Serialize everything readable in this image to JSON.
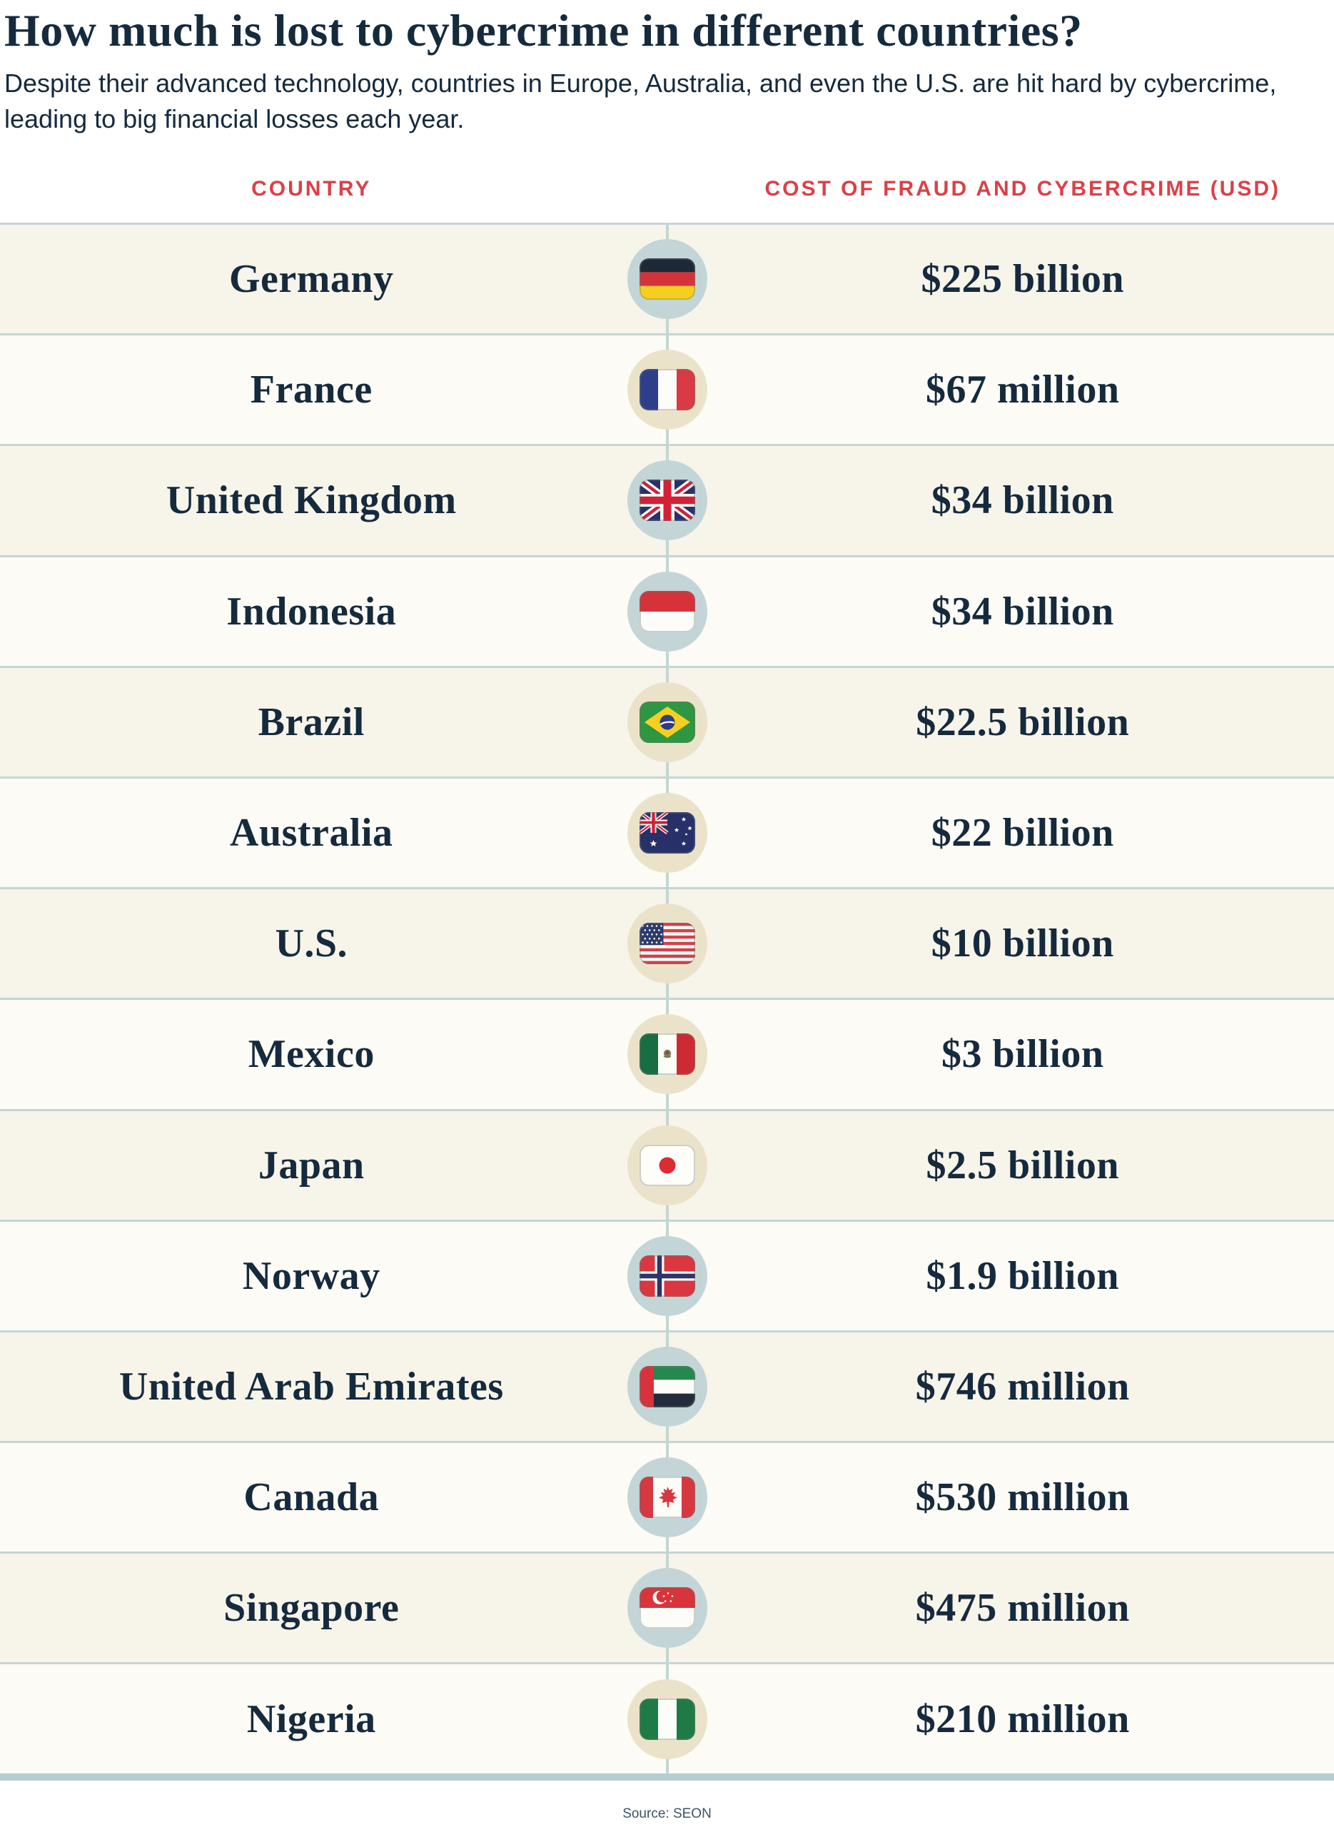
{
  "header": {
    "title": "How much is lost to cybercrime in different countries?",
    "subtitle": "Despite their advanced technology, countries in Europe, Australia, and even the U.S. are hit hard by cybercrime, leading to big financial losses each year."
  },
  "columns": {
    "country_label": "COUNTRY",
    "cost_label": "COST OF FRAUD AND CYBERCRIME (USD)"
  },
  "colors": {
    "navy": "#152a3d",
    "accent_red": "#dc4046",
    "row_beige": "#f7f4ea",
    "row_white": "#fcfbf6",
    "separator": "#c4d6d3",
    "bottom_bar": "#b5cdd0",
    "circle_blue": "#c3d5d7",
    "circle_cream": "#ebe3c9",
    "source_gray": "#3e5368"
  },
  "chart_data": {
    "type": "table",
    "title": "How much is lost to cybercrime in different countries?",
    "columns": [
      "Country",
      "Cost of fraud and cybercrime (USD)"
    ],
    "categories": [
      "Germany",
      "France",
      "United Kingdom",
      "Indonesia",
      "Brazil",
      "Australia",
      "U.S.",
      "Mexico",
      "Japan",
      "Norway",
      "United Arab Emirates",
      "Canada",
      "Singapore",
      "Nigeria"
    ],
    "values": [
      "$225 billion",
      "$67 million",
      "$34 billion",
      "$34 billion",
      "$22.5 billion",
      "$22 billion",
      "$10 billion",
      "$3 billion",
      "$2.5 billion",
      "$1.9 billion",
      "$746 million",
      "$530 million",
      "$475 million",
      "$210 million"
    ]
  },
  "rows": [
    {
      "country": "Germany",
      "value": "$225 billion",
      "flag": "germany",
      "circle": "blue",
      "shade": "beige"
    },
    {
      "country": "France",
      "value": "$67 million",
      "flag": "france",
      "circle": "cream",
      "shade": "white"
    },
    {
      "country": "United Kingdom",
      "value": "$34 billion",
      "flag": "uk",
      "circle": "blue",
      "shade": "beige"
    },
    {
      "country": "Indonesia",
      "value": "$34 billion",
      "flag": "indonesia",
      "circle": "blue",
      "shade": "white"
    },
    {
      "country": "Brazil",
      "value": "$22.5 billion",
      "flag": "brazil",
      "circle": "cream",
      "shade": "beige"
    },
    {
      "country": "Australia",
      "value": "$22 billion",
      "flag": "australia",
      "circle": "cream",
      "shade": "white"
    },
    {
      "country": "U.S.",
      "value": "$10 billion",
      "flag": "us",
      "circle": "cream",
      "shade": "beige"
    },
    {
      "country": "Mexico",
      "value": "$3 billion",
      "flag": "mexico",
      "circle": "cream",
      "shade": "white"
    },
    {
      "country": "Japan",
      "value": "$2.5 billion",
      "flag": "japan",
      "circle": "cream",
      "shade": "beige"
    },
    {
      "country": "Norway",
      "value": "$1.9 billion",
      "flag": "norway",
      "circle": "blue",
      "shade": "white"
    },
    {
      "country": "United Arab Emirates",
      "value": "$746 million",
      "flag": "uae",
      "circle": "blue",
      "shade": "beige"
    },
    {
      "country": "Canada",
      "value": "$530 million",
      "flag": "canada",
      "circle": "blue",
      "shade": "white"
    },
    {
      "country": "Singapore",
      "value": "$475 million",
      "flag": "singapore",
      "circle": "blue",
      "shade": "beige"
    },
    {
      "country": "Nigeria",
      "value": "$210 million",
      "flag": "nigeria",
      "circle": "cream",
      "shade": "white"
    }
  ],
  "footer": {
    "source": "Source: SEON"
  }
}
